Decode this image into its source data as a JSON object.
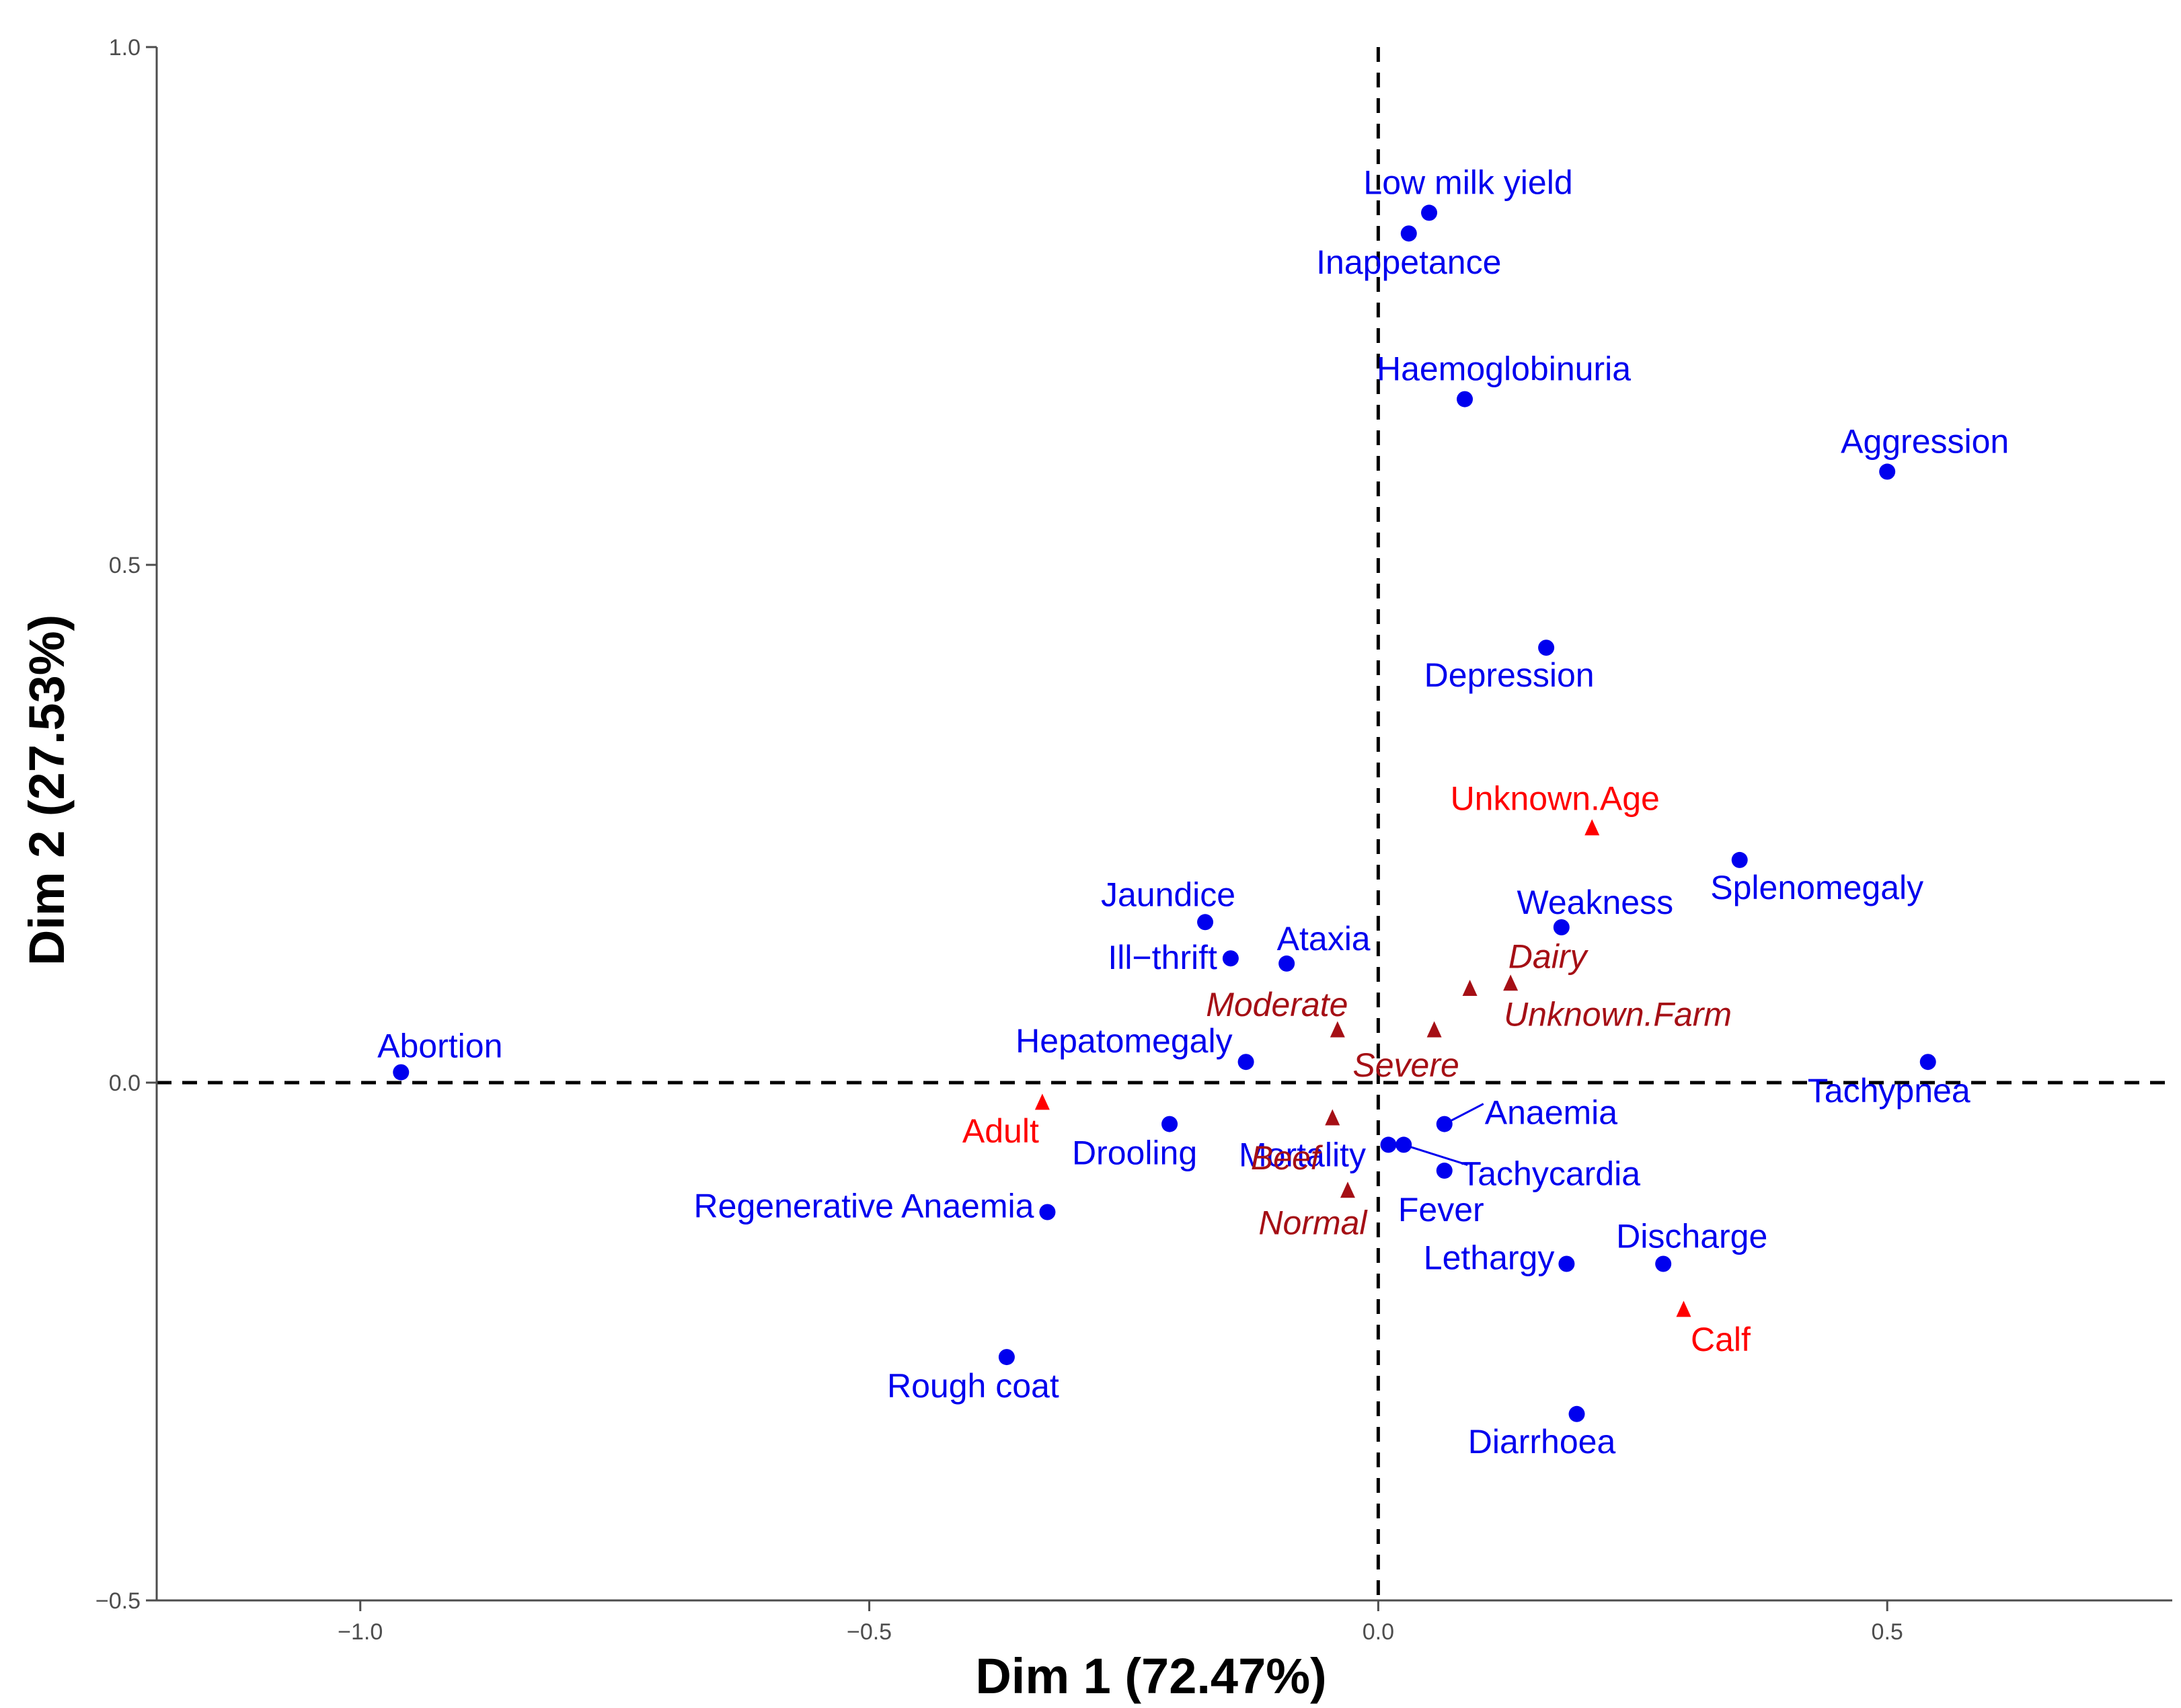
{
  "chart_data": {
    "type": "scatter",
    "title": "",
    "xlabel": "Dim 1 (72.47%)",
    "ylabel": "Dim 2 (27.53%)",
    "xlim": [
      -1.2,
      0.78
    ],
    "ylim": [
      -0.5,
      1.0
    ],
    "xticks": [
      -1.0,
      -0.5,
      0.0,
      0.5
    ],
    "yticks": [
      -0.5,
      0.0,
      0.5,
      1.0
    ],
    "xtick_labels": [
      "−1.0",
      "−0.5",
      "0.0",
      "0.5"
    ],
    "ytick_labels": [
      "−0.5",
      "0.0",
      "0.5",
      "1.0"
    ],
    "grid": false,
    "reference_lines": {
      "x": 0,
      "y": 0,
      "style": "dashed"
    },
    "colors": {
      "symptom": "#0000ee",
      "age": "#ff0000",
      "supplementary": "#a50f15",
      "axis": "#4d4d4d",
      "reference": "#000000"
    },
    "series": [
      {
        "group": "symptom",
        "marker": "circle",
        "points": [
          {
            "label": "Low milk yield",
            "x": 0.05,
            "y": 0.84
          },
          {
            "label": "Inappetance",
            "x": 0.03,
            "y": 0.82
          },
          {
            "label": "Haemoglobinuria",
            "x": 0.085,
            "y": 0.66
          },
          {
            "label": "Aggression",
            "x": 0.5,
            "y": 0.59
          },
          {
            "label": "Depression",
            "x": 0.165,
            "y": 0.42
          },
          {
            "label": "Splenomegaly",
            "x": 0.355,
            "y": 0.215
          },
          {
            "label": "Weakness",
            "x": 0.18,
            "y": 0.15
          },
          {
            "label": "Jaundice",
            "x": -0.17,
            "y": 0.155
          },
          {
            "label": "Ill−thrift",
            "x": -0.145,
            "y": 0.12
          },
          {
            "label": "Ataxia",
            "x": -0.09,
            "y": 0.115
          },
          {
            "label": "Hepatomegaly",
            "x": -0.13,
            "y": 0.02
          },
          {
            "label": "Tachypnea",
            "x": 0.54,
            "y": 0.02
          },
          {
            "label": "Abortion",
            "x": -0.96,
            "y": 0.01
          },
          {
            "label": "Anaemia",
            "x": 0.065,
            "y": -0.04
          },
          {
            "label": "Drooling",
            "x": -0.205,
            "y": -0.04
          },
          {
            "label": "Mortality",
            "x": 0.01,
            "y": -0.06
          },
          {
            "label": "Tachycardia",
            "x": 0.025,
            "y": -0.06
          },
          {
            "label": "Fever",
            "x": 0.065,
            "y": -0.085
          },
          {
            "label": "Regenerative Anaemia",
            "x": -0.325,
            "y": -0.125
          },
          {
            "label": "Lethargy",
            "x": 0.185,
            "y": -0.175
          },
          {
            "label": "Discharge",
            "x": 0.28,
            "y": -0.175
          },
          {
            "label": "Rough coat",
            "x": -0.365,
            "y": -0.265
          },
          {
            "label": "Diarrhoea",
            "x": 0.195,
            "y": -0.32
          }
        ]
      },
      {
        "group": "age",
        "marker": "triangle",
        "points": [
          {
            "label": "Unknown.Age",
            "x": 0.21,
            "y": 0.245
          },
          {
            "label": "Adult",
            "x": -0.33,
            "y": -0.02
          },
          {
            "label": "Calf",
            "x": 0.3,
            "y": -0.22
          }
        ]
      },
      {
        "group": "supplementary",
        "marker": "triangle",
        "italic": true,
        "points": [
          {
            "label": "Dairy",
            "x": 0.13,
            "y": 0.095
          },
          {
            "label": "Unknown.Farm",
            "x": 0.09,
            "y": 0.09
          },
          {
            "label": "Moderate",
            "x": -0.04,
            "y": 0.05
          },
          {
            "label": "Severe",
            "x": 0.055,
            "y": 0.05
          },
          {
            "label": "Beef",
            "x": -0.045,
            "y": -0.035
          },
          {
            "label": "Normal",
            "x": -0.03,
            "y": -0.105
          }
        ]
      }
    ]
  }
}
